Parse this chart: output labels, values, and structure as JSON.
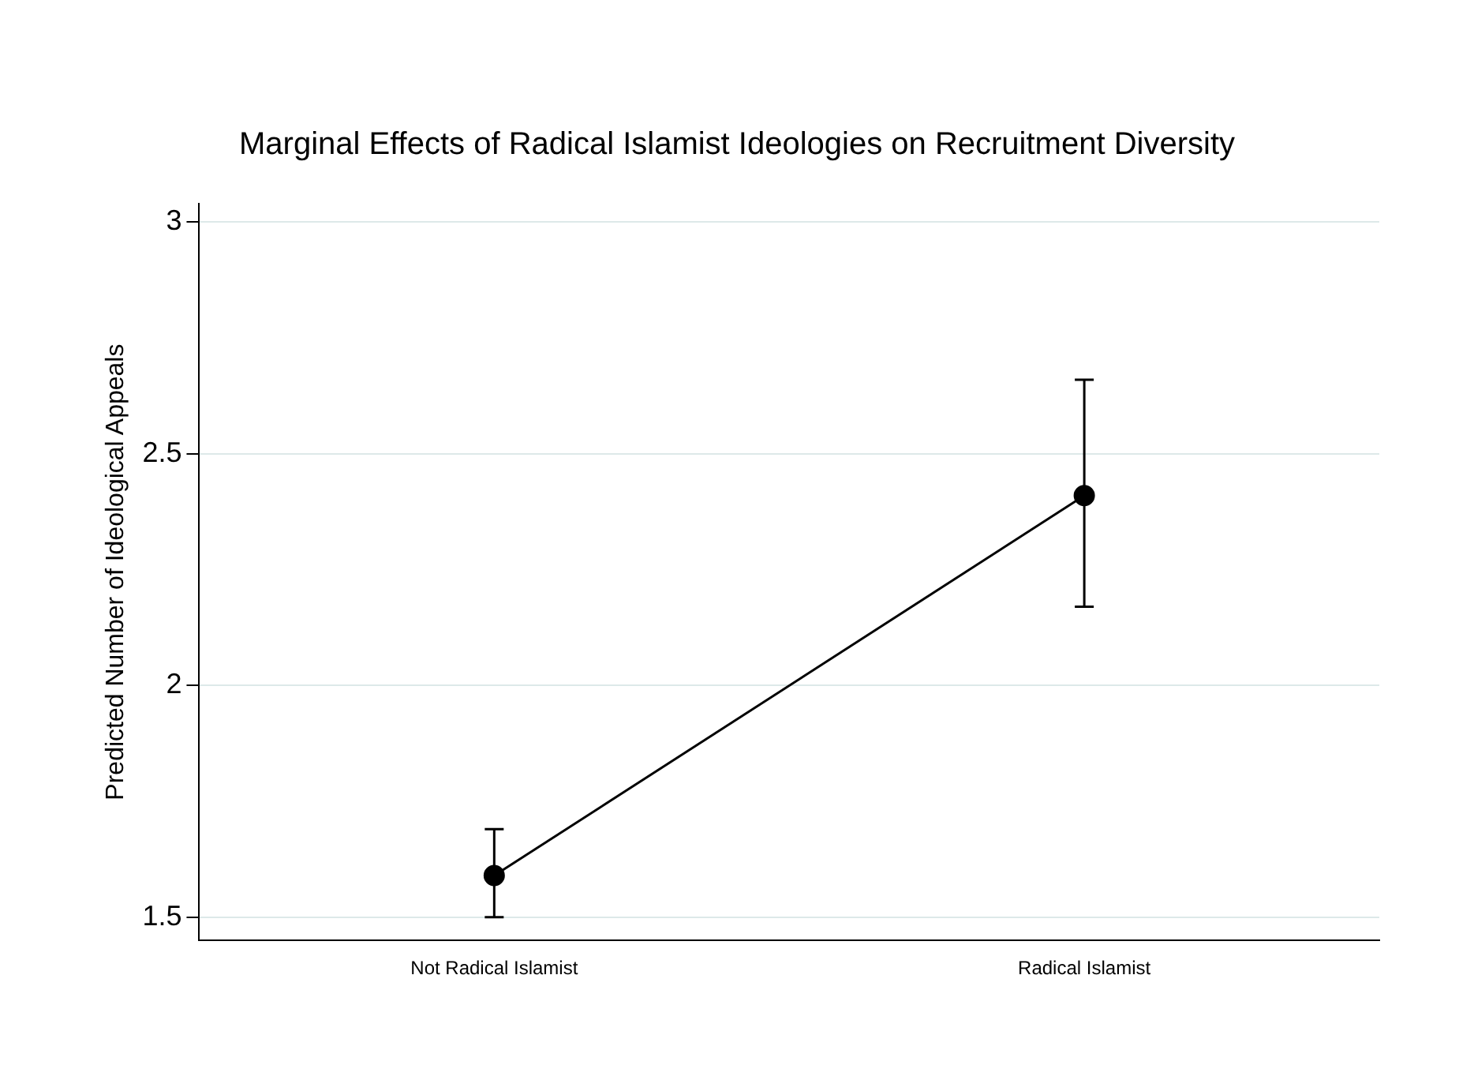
{
  "chart_data": {
    "type": "line",
    "title": "Marginal Effects of Radical Islamist Ideologies on Recruitment Diversity",
    "ylabel": "Predicted Number of Ideological Appeals",
    "categories": [
      "Not Radical Islamist",
      "Radical Islamist"
    ],
    "series": [
      {
        "color": "#000000",
        "values": [
          1.59,
          2.41
        ],
        "errors": [
          [
            1.5,
            1.69
          ],
          [
            2.17,
            2.66
          ]
        ]
      }
    ],
    "ylim": [
      1.45,
      3.04
    ],
    "yticks": [
      1.5,
      2,
      2.5,
      3
    ],
    "grid": "y",
    "legend": false,
    "marker": "circle",
    "line_style": "solid"
  }
}
